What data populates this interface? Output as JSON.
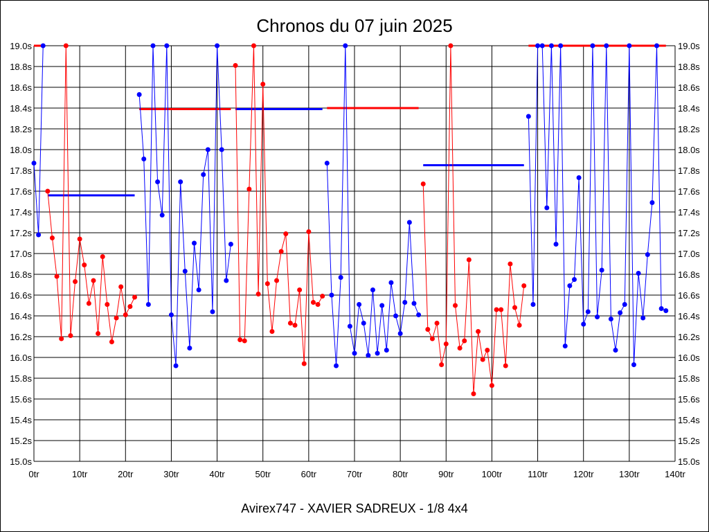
{
  "chart_data": {
    "type": "line",
    "title": "Chronos du 07 juin 2025",
    "xlabel": "Avirex747 - XAVIER SADREUX - 1/8 4x4",
    "ylabel": "",
    "xlim": [
      0,
      140
    ],
    "ylim": [
      15.0,
      19.0
    ],
    "x_ticks": [
      0,
      10,
      20,
      30,
      40,
      50,
      60,
      70,
      80,
      90,
      100,
      110,
      120,
      130,
      140
    ],
    "x_tick_labels": [
      "0tr",
      "10tr",
      "20tr",
      "30tr",
      "40tr",
      "50tr",
      "60tr",
      "70tr",
      "80tr",
      "90tr",
      "100tr",
      "110tr",
      "120tr",
      "130tr",
      "140tr"
    ],
    "y_ticks": [
      15.0,
      15.2,
      15.4,
      15.6,
      15.8,
      16.0,
      16.2,
      16.4,
      16.6,
      16.8,
      17.0,
      17.2,
      17.4,
      17.6,
      17.8,
      18.0,
      18.2,
      18.4,
      18.6,
      18.8,
      19.0
    ],
    "y_tick_labels": [
      "15.0s",
      "15.2s",
      "15.4s",
      "15.6s",
      "15.8s",
      "16.0s",
      "16.2s",
      "16.4s",
      "16.6s",
      "16.8s",
      "17.0s",
      "17.2s",
      "17.4s",
      "17.6s",
      "17.8s",
      "18.0s",
      "18.2s",
      "18.4s",
      "18.6s",
      "18.8s",
      "19.0s"
    ],
    "grid": true,
    "colors": {
      "blue": "#0000ff",
      "red": "#ff0000"
    },
    "series": [
      {
        "name": "seg1",
        "color": "#0000ff",
        "start": 0,
        "values": [
          17.87,
          17.18,
          19.0
        ],
        "avg": 19.0,
        "avg_color": "#ff0000"
      },
      {
        "name": "seg2",
        "color": "#ff0000",
        "start": 3,
        "values": [
          17.6,
          17.15,
          16.78,
          16.18,
          19.0,
          16.21,
          16.73,
          17.14,
          16.89,
          16.52,
          16.74,
          16.23,
          16.97,
          16.51,
          16.15,
          16.38,
          16.68,
          16.41,
          16.49,
          16.58
        ],
        "avg": 17.56,
        "avg_color": "#0000ff"
      },
      {
        "name": "seg3",
        "color": "#0000ff",
        "start": 23,
        "values": [
          18.53,
          17.91,
          16.51,
          19.0,
          17.69,
          17.37,
          19.0,
          16.41,
          15.92,
          17.69,
          16.83,
          16.09,
          17.1,
          16.65,
          17.76,
          18.0,
          16.44,
          19.0,
          18.0,
          16.74,
          17.09
        ],
        "avg": 18.39,
        "avg_color": "#ff0000"
      },
      {
        "name": "seg4",
        "color": "#ff0000",
        "start": 44,
        "values": [
          18.81,
          16.17,
          16.16,
          17.62,
          19.0,
          16.61,
          18.63,
          16.71,
          16.25,
          16.74,
          17.02,
          17.19,
          16.33,
          16.31,
          16.65,
          15.94,
          17.21,
          16.53,
          16.51,
          16.59
        ],
        "avg": 18.39,
        "avg_color": "#0000ff"
      },
      {
        "name": "seg5",
        "color": "#0000ff",
        "start": 64,
        "values": [
          17.87,
          16.6,
          15.92,
          16.77,
          19.0,
          16.3,
          16.04,
          16.51,
          16.33,
          16.02,
          16.65,
          16.04,
          16.5,
          16.07,
          16.72,
          16.4,
          16.23,
          16.53,
          17.3,
          16.52,
          16.41
        ],
        "avg": 18.4,
        "avg_color": "#ff0000"
      },
      {
        "name": "seg6",
        "color": "#ff0000",
        "start": 85,
        "values": [
          17.67,
          16.27,
          16.18,
          16.33,
          15.93,
          16.13,
          19.0,
          16.5,
          16.09,
          16.16,
          16.94,
          15.65,
          16.25,
          15.98,
          16.07,
          15.73,
          16.46,
          16.46,
          15.92,
          16.9,
          16.48,
          16.31,
          16.69
        ],
        "avg": 17.85,
        "avg_color": "#0000ff"
      },
      {
        "name": "seg7",
        "color": "#0000ff",
        "start": 108,
        "values": [
          18.32,
          16.51,
          19.0,
          19.0,
          17.44,
          19.0,
          17.09,
          19.0,
          16.11,
          16.69,
          16.75,
          17.73,
          16.32,
          16.44,
          19.0,
          16.39,
          16.84,
          19.0,
          16.37,
          16.07,
          16.43,
          16.51,
          19.0,
          15.93,
          16.81,
          16.38,
          16.99,
          17.49,
          19.0,
          16.47,
          16.45
        ],
        "avg": 19.0,
        "avg_color": "#ff0000"
      }
    ]
  }
}
